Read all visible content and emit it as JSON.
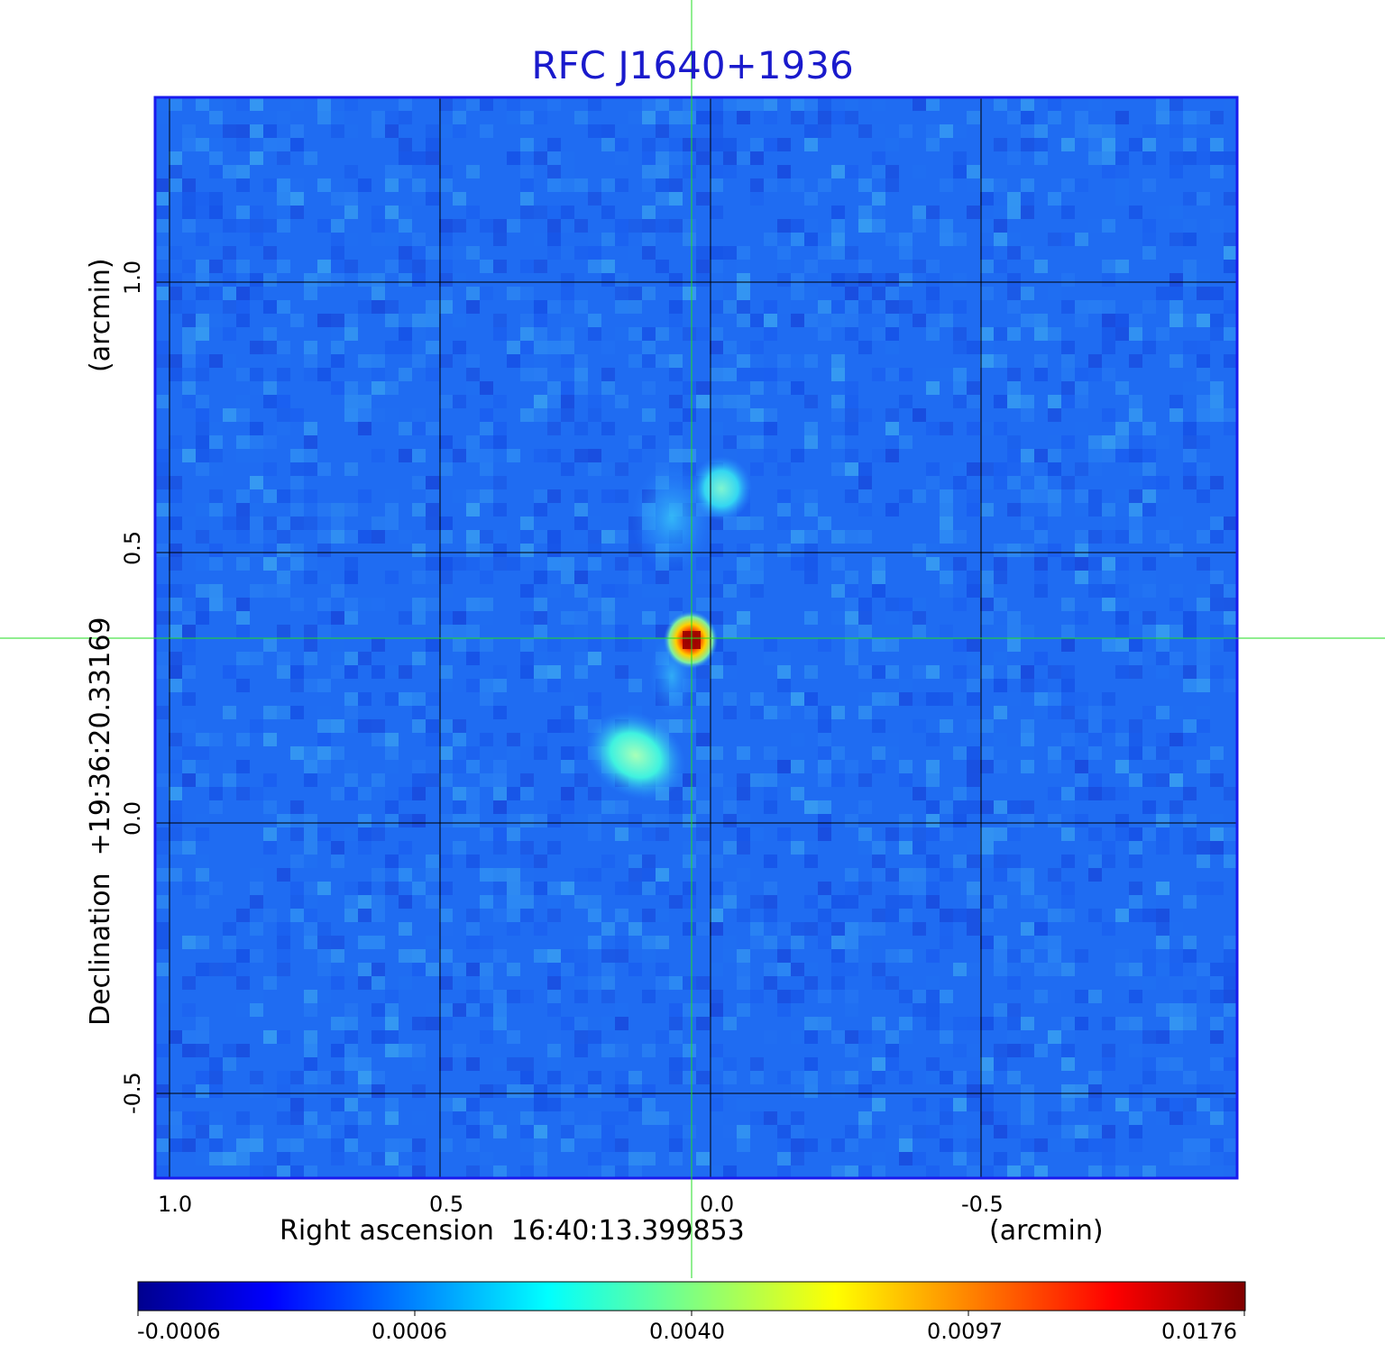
{
  "title": "RFC J1640+1936",
  "x_axis": {
    "label": "Right ascension  16:40:13.399853",
    "unit": "(arcmin)",
    "ticks": [
      "1.0",
      "0.5",
      "0.0",
      "-0.5"
    ]
  },
  "y_axis": {
    "label": "Declination  +19:36:20.33169",
    "unit": "(arcmin)",
    "ticks": [
      "1.0",
      "0.5",
      "0.0",
      "-0.5"
    ]
  },
  "colorbar": {
    "ticks": [
      "-0.0006",
      "0.0006",
      "0.0040",
      "0.0097",
      "0.0176"
    ],
    "colormap": "jet"
  },
  "colors": {
    "title": "#1a1acc",
    "frame": "#1a1aee",
    "crosshair": "#22dd22",
    "grid": "#000000"
  }
}
